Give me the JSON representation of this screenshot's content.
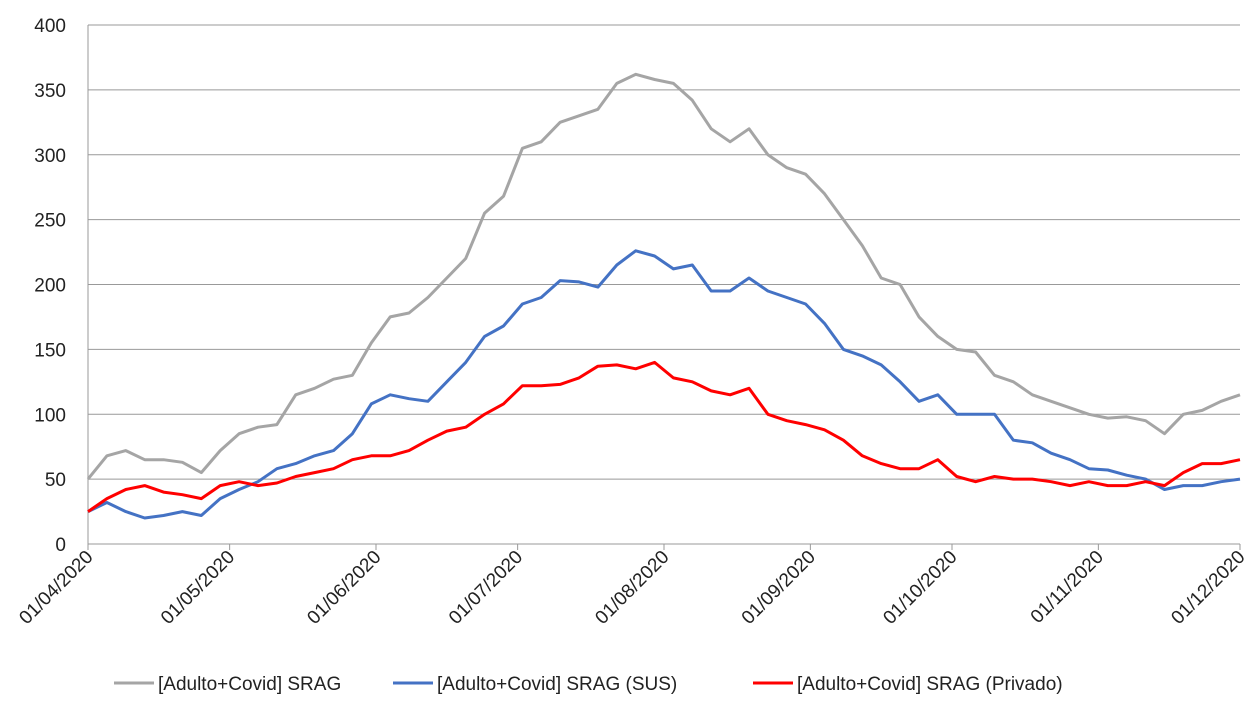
{
  "chart_data": {
    "type": "line",
    "x": [
      "01/04/2020",
      "05/04/2020",
      "09/04/2020",
      "13/04/2020",
      "17/04/2020",
      "21/04/2020",
      "25/04/2020",
      "29/04/2020",
      "03/05/2020",
      "07/05/2020",
      "11/05/2020",
      "15/05/2020",
      "19/05/2020",
      "23/05/2020",
      "27/05/2020",
      "31/05/2020",
      "04/06/2020",
      "08/06/2020",
      "12/06/2020",
      "16/06/2020",
      "20/06/2020",
      "24/06/2020",
      "28/06/2020",
      "02/07/2020",
      "06/07/2020",
      "10/07/2020",
      "14/07/2020",
      "18/07/2020",
      "22/07/2020",
      "26/07/2020",
      "30/07/2020",
      "03/08/2020",
      "07/08/2020",
      "11/08/2020",
      "15/08/2020",
      "19/08/2020",
      "23/08/2020",
      "27/08/2020",
      "31/08/2020",
      "04/09/2020",
      "08/09/2020",
      "12/09/2020",
      "16/09/2020",
      "20/09/2020",
      "24/09/2020",
      "28/09/2020",
      "02/10/2020",
      "06/10/2020",
      "10/10/2020",
      "14/10/2020",
      "18/10/2020",
      "22/10/2020",
      "26/10/2020",
      "30/10/2020",
      "03/11/2020",
      "07/11/2020",
      "11/11/2020",
      "15/11/2020",
      "19/11/2020",
      "23/11/2020",
      "27/11/2020",
      "01/12/2020"
    ],
    "series": [
      {
        "name": "[Adulto+Covid] SRAG",
        "color": "#a5a5a5",
        "values": [
          50,
          68,
          72,
          65,
          65,
          63,
          55,
          72,
          85,
          90,
          92,
          115,
          120,
          127,
          130,
          155,
          175,
          178,
          190,
          205,
          220,
          255,
          268,
          305,
          310,
          325,
          330,
          335,
          355,
          362,
          358,
          355,
          342,
          320,
          310,
          320,
          300,
          290,
          285,
          270,
          250,
          230,
          205,
          200,
          175,
          160,
          150,
          148,
          130,
          125,
          115,
          110,
          105,
          100,
          97,
          98,
          95,
          85,
          100,
          103,
          110,
          115
        ]
      },
      {
        "name": "[Adulto+Covid] SRAG (SUS)",
        "color": "#4472c4",
        "values": [
          25,
          32,
          25,
          20,
          22,
          25,
          22,
          35,
          42,
          48,
          58,
          62,
          68,
          72,
          85,
          108,
          115,
          112,
          110,
          125,
          140,
          160,
          168,
          185,
          190,
          203,
          202,
          198,
          215,
          226,
          222,
          212,
          215,
          195,
          195,
          205,
          195,
          190,
          185,
          170,
          150,
          145,
          138,
          125,
          110,
          115,
          100,
          100,
          100,
          80,
          78,
          70,
          65,
          58,
          57,
          53,
          50,
          42,
          45,
          45,
          48,
          50
        ]
      },
      {
        "name": "[Adulto+Covid] SRAG (Privado)",
        "color": "#ff0000",
        "values": [
          25,
          35,
          42,
          45,
          40,
          38,
          35,
          45,
          48,
          45,
          47,
          52,
          55,
          58,
          65,
          68,
          68,
          72,
          80,
          87,
          90,
          100,
          108,
          122,
          122,
          123,
          128,
          137,
          138,
          135,
          140,
          128,
          125,
          118,
          115,
          120,
          100,
          95,
          92,
          88,
          80,
          68,
          62,
          58,
          58,
          65,
          52,
          48,
          52,
          50,
          50,
          48,
          45,
          48,
          45,
          45,
          48,
          45,
          55,
          62,
          62,
          65
        ]
      }
    ],
    "xlim": [
      "01/04/2020",
      "01/12/2020"
    ],
    "xticks": [
      "01/04/2020",
      "01/05/2020",
      "01/06/2020",
      "01/07/2020",
      "01/08/2020",
      "01/09/2020",
      "01/10/2020",
      "01/11/2020",
      "01/12/2020"
    ],
    "ylim": [
      0,
      400
    ],
    "yticks": [
      0,
      50,
      100,
      150,
      200,
      250,
      300,
      350,
      400
    ],
    "grid": true,
    "legend": "bottom"
  }
}
